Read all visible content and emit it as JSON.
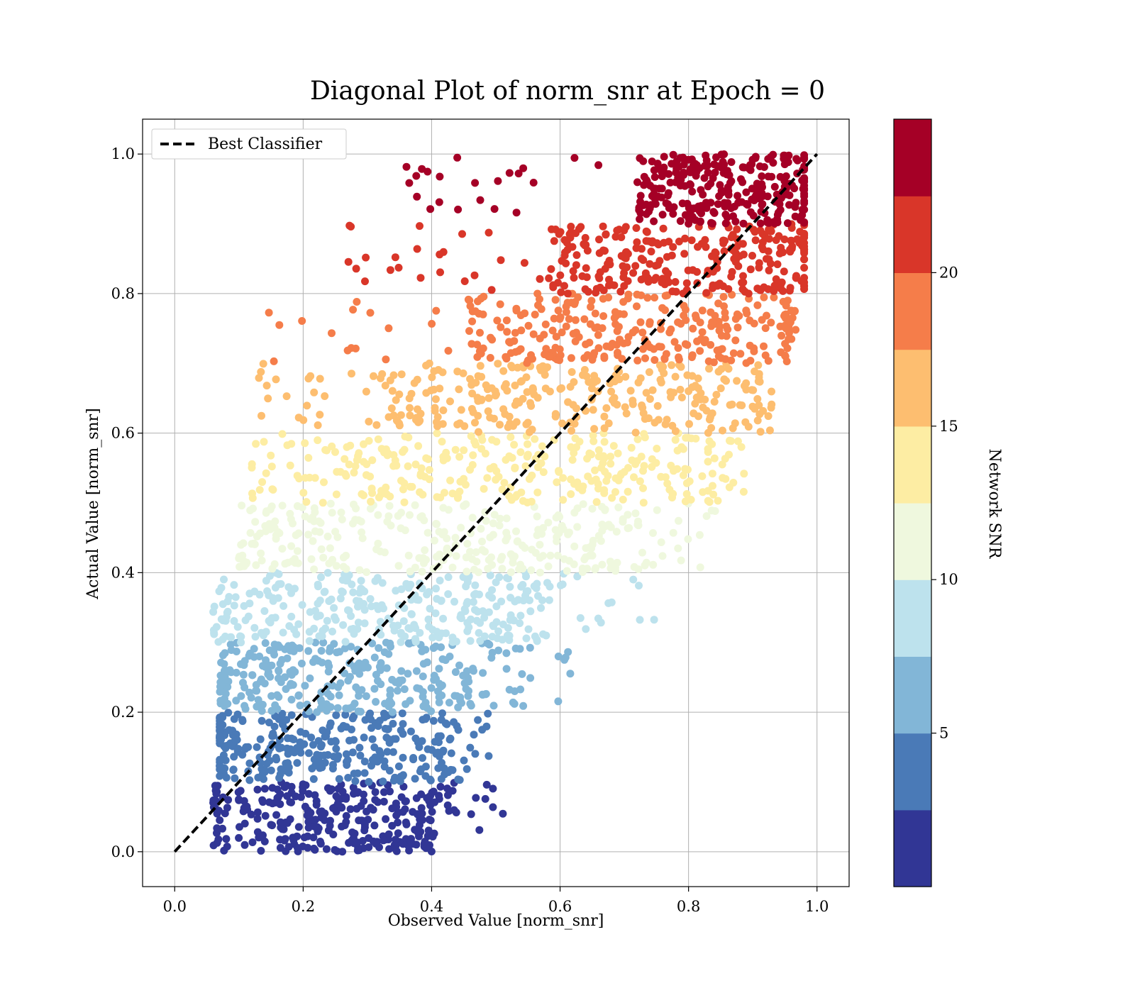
{
  "chart_data": {
    "type": "scatter",
    "title": "Diagonal Plot of norm_snr at Epoch = 0",
    "xlabel": "Observed Value [norm_snr]",
    "ylabel": "Actual Value [norm_snr]",
    "xlim": [
      -0.05,
      1.05
    ],
    "ylim": [
      -0.05,
      1.05
    ],
    "xticks": [
      "0.0",
      "0.2",
      "0.4",
      "0.6",
      "0.8",
      "1.0"
    ],
    "yticks": [
      "0.0",
      "0.2",
      "0.4",
      "0.6",
      "0.8",
      "1.0"
    ],
    "grid": true,
    "legend": {
      "position": "top-left",
      "entries": [
        {
          "label": "Best Classifier",
          "style": "dashed",
          "color": "#000000"
        }
      ]
    },
    "reference_line": {
      "label": "Best Classifier",
      "x": [
        0.0,
        1.0
      ],
      "y": [
        0.0,
        1.0
      ]
    },
    "bands": [
      {
        "y_range": [
          0.0,
          0.1
        ],
        "x_core": [
          0.07,
          0.4
        ],
        "x_tail": [
          0.06,
          0.53
        ],
        "color": "#313695"
      },
      {
        "y_range": [
          0.1,
          0.2
        ],
        "x_core": [
          0.07,
          0.42
        ],
        "x_tail": [
          0.07,
          0.55
        ],
        "color": "#4a7ab7"
      },
      {
        "y_range": [
          0.2,
          0.3
        ],
        "x_core": [
          0.08,
          0.49
        ],
        "x_tail": [
          0.07,
          0.62
        ],
        "color": "#82b6d7"
      },
      {
        "y_range": [
          0.3,
          0.4
        ],
        "x_core": [
          0.1,
          0.58
        ],
        "x_tail": [
          0.06,
          0.75
        ],
        "color": "#bde2ed"
      },
      {
        "y_range": [
          0.4,
          0.5
        ],
        "x_core": [
          0.13,
          0.72
        ],
        "x_tail": [
          0.1,
          0.85
        ],
        "color": "#eff8de"
      },
      {
        "y_range": [
          0.5,
          0.6
        ],
        "x_core": [
          0.2,
          0.83
        ],
        "x_tail": [
          0.12,
          0.89
        ],
        "color": "#fdeda3"
      },
      {
        "y_range": [
          0.6,
          0.7
        ],
        "x_core": [
          0.33,
          0.9
        ],
        "x_tail": [
          0.13,
          0.93
        ],
        "color": "#fdbe70"
      },
      {
        "y_range": [
          0.7,
          0.8
        ],
        "x_core": [
          0.45,
          0.95
        ],
        "x_tail": [
          0.14,
          0.97
        ],
        "color": "#f57d4a"
      },
      {
        "y_range": [
          0.8,
          0.9
        ],
        "x_core": [
          0.58,
          0.98
        ],
        "x_tail": [
          0.27,
          0.98
        ],
        "color": "#d93629"
      },
      {
        "y_range": [
          0.9,
          1.0
        ],
        "x_core": [
          0.72,
          0.98
        ],
        "x_tail": [
          0.36,
          0.98
        ],
        "color": "#a50026"
      }
    ],
    "colorbar": {
      "label": "Network SNR",
      "range": [
        0,
        25
      ],
      "ticks": [
        5,
        10,
        15,
        20
      ],
      "tick_labels": [
        "5",
        "10",
        "15",
        "20"
      ],
      "colors": [
        "#313695",
        "#4a7ab7",
        "#82b6d7",
        "#bde2ed",
        "#eff8de",
        "#fdeda3",
        "#fdbe70",
        "#f57d4a",
        "#d93629",
        "#a50026"
      ]
    }
  }
}
